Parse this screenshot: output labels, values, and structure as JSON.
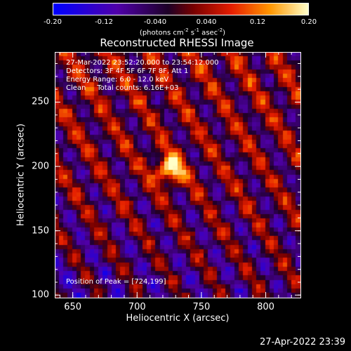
{
  "colorbar": {
    "ticks": [
      "-0.20",
      "-0.12",
      "-0.040",
      "0.040",
      "0.12",
      "0.20"
    ],
    "tick_values": [
      -0.2,
      -0.12,
      -0.04,
      0.04,
      0.12,
      0.2
    ],
    "range": [
      -0.2,
      0.2
    ],
    "units_prefix": "(photons cm",
    "units_exp1": "-2",
    "units_mid": " s",
    "units_exp2": "-1",
    "units_mid2": " asec",
    "units_exp3": "-2",
    "units_suffix": ")",
    "colors": [
      "#0000ff",
      "#4400aa",
      "#aa0000",
      "#ff2200",
      "#ffaa00",
      "#ffff99"
    ]
  },
  "title": "Reconstructed RHESSI Image",
  "info": {
    "time": "27-Mar-2022 23:52:20.000 to 23:54:12.000",
    "detectors": "Detectors: 3F 4F 5F 6F 7F 8F, Att 1",
    "energy": "Energy Range: 6.0 - 12.0 keV",
    "clean": "Clean     Total counts: 6.16E+03",
    "peak": "Position of Peak = [724,199]"
  },
  "axes": {
    "xlabel": "Heliocentric X (arcsec)",
    "ylabel": "Heliocentric Y (arcsec)",
    "xticks": [
      "650",
      "700",
      "750",
      "800"
    ],
    "xtick_values": [
      650,
      700,
      750,
      800
    ],
    "yticks": [
      "100",
      "150",
      "200",
      "250"
    ],
    "ytick_values": [
      100,
      150,
      200,
      250
    ],
    "xlim": [
      636,
      827
    ],
    "ylim": [
      98,
      289
    ]
  },
  "peak": {
    "x": 724,
    "y": 199
  },
  "footer": "27-Apr-2022 23:39"
}
